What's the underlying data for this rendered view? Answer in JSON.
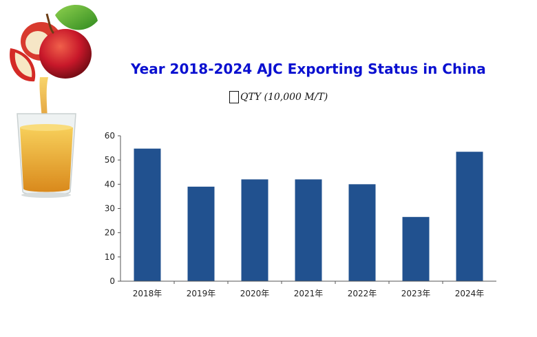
{
  "chart_data": {
    "type": "bar",
    "title": "Year 2018-2024 AJC Exporting Status in China",
    "subtitle": "QTY (10,000 M/T)",
    "categories": [
      "2018年",
      "2019年",
      "2020年",
      "2021年",
      "2022年",
      "2023年",
      "2024年"
    ],
    "values": [
      54.7,
      39,
      42,
      42,
      40,
      26.5,
      53.4
    ],
    "y_ticks": [
      "0",
      "10",
      "20",
      "30",
      "40",
      "50",
      "60"
    ],
    "ylim": [
      0,
      60
    ],
    "grid": false,
    "colors": {
      "bar": "#21518f",
      "axis": "#555555"
    }
  },
  "illustration": {
    "icon": "apple-juice-icon"
  }
}
